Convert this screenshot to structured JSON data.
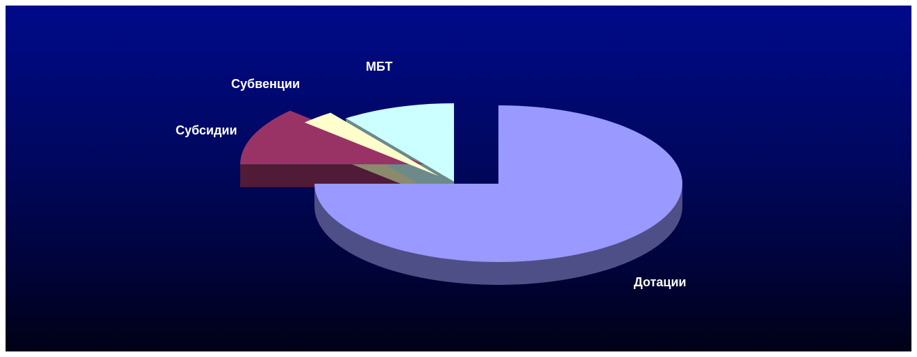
{
  "chart_data": {
    "type": "pie",
    "style": "3d-exploded",
    "title": "",
    "slices": [
      {
        "label": "Дотации",
        "value": 75,
        "color": "#9999ff",
        "side_color": "#4f4f88"
      },
      {
        "label": "Субсидии",
        "value": 12,
        "color": "#993366",
        "side_color": "#4f1b36"
      },
      {
        "label": "Субвенции",
        "value": 3,
        "color": "#ffffcc",
        "side_color": "#8a8a6c"
      },
      {
        "label": "МБТ",
        "value": 10,
        "color": "#ccffff",
        "side_color": "#6c8a8a"
      }
    ],
    "background": [
      "#000a8a",
      "#000116"
    ]
  }
}
